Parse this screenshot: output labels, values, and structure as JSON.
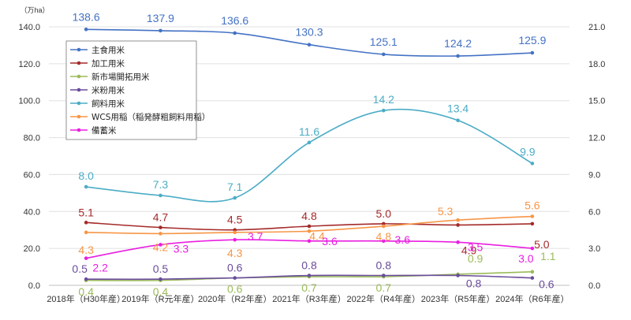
{
  "chart_data": {
    "type": "line",
    "unit_label": "（万ha）",
    "categories": [
      "2018年（H30年産）",
      "2019年（R元年産）",
      "2020年（R2年産）",
      "2021年（R3年産）",
      "2022年（R4年産）",
      "2023年（R5年産）",
      "2024年（R6年産）"
    ],
    "primary_axis": {
      "ylim": [
        0,
        140
      ],
      "ticks": [
        "0.0",
        "20.0",
        "40.0",
        "60.0",
        "80.0",
        "100.0",
        "120.0",
        "140.0"
      ]
    },
    "secondary_axis": {
      "ylim": [
        0,
        21
      ],
      "ticks": [
        "0.0",
        "3.0",
        "6.0",
        "9.0",
        "12.0",
        "15.0",
        "18.0",
        "21.0"
      ]
    },
    "grid": true,
    "legend_position": "top-left",
    "series": [
      {
        "name": "主食用米",
        "axis": "primary",
        "color": "#4472c4",
        "values": [
          138.6,
          137.9,
          136.6,
          130.3,
          125.1,
          124.2,
          125.9
        ],
        "labels": [
          "138.6",
          "137.9",
          "136.6",
          "130.3",
          "125.1",
          "124.2",
          "125.9"
        ]
      },
      {
        "name": "加工用米",
        "axis": "secondary",
        "color": "#a52a2a",
        "values": [
          5.1,
          4.7,
          4.5,
          4.8,
          5.0,
          4.9,
          5.0
        ],
        "labels": [
          "5.1",
          "4.7",
          "4.5",
          "4.8",
          "5.0",
          "4.9",
          "5.0"
        ]
      },
      {
        "name": "新市場開拓用米",
        "axis": "secondary",
        "color": "#9bbb59",
        "values": [
          0.4,
          0.4,
          0.6,
          0.7,
          0.7,
          0.9,
          1.1
        ],
        "labels": [
          "0.4",
          "0.4",
          "0.6",
          "0.7",
          "0.7",
          "0.9",
          "1.1"
        ]
      },
      {
        "name": "米粉用米",
        "axis": "secondary",
        "color": "#6a4c9c",
        "values": [
          0.5,
          0.5,
          0.6,
          0.8,
          0.8,
          0.8,
          0.6
        ],
        "labels": [
          "0.5",
          "0.5",
          "0.6",
          "0.8",
          "0.8",
          "0.8",
          "0.6"
        ]
      },
      {
        "name": "飼料用米",
        "axis": "secondary",
        "color": "#4bacc6",
        "values": [
          8.0,
          7.3,
          7.1,
          11.6,
          14.2,
          13.4,
          9.9
        ],
        "labels": [
          "8.0",
          "7.3",
          "7.1",
          "11.6",
          "14.2",
          "13.4",
          "9.9"
        ]
      },
      {
        "name": "WCS用稲（稲発酵粗飼料用稲）",
        "axis": "secondary",
        "color": "#f79646",
        "values": [
          4.3,
          4.2,
          4.3,
          4.4,
          4.8,
          5.3,
          5.6
        ],
        "labels": [
          "4.3",
          "4.2",
          "4.3",
          "4.4",
          "4.8",
          "5.3",
          "5.6"
        ]
      },
      {
        "name": "備蓄米",
        "axis": "secondary",
        "color": "#e91ee0",
        "values": [
          2.2,
          3.3,
          3.7,
          3.6,
          3.6,
          3.5,
          3.0
        ],
        "labels": [
          "2.2",
          "3.3",
          "3.7",
          "3.6",
          "3.6",
          "3.5",
          "3.0"
        ]
      }
    ]
  }
}
